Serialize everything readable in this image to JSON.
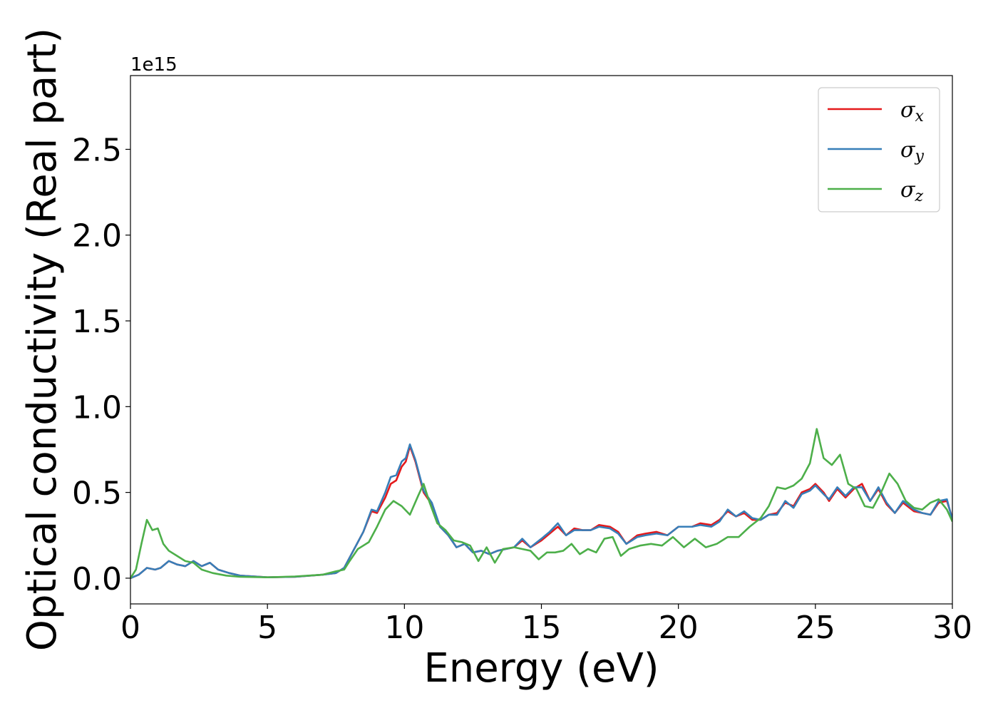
{
  "chart_data": {
    "type": "line",
    "title": "",
    "xlabel": "Energy (eV)",
    "ylabel": "Optical conductivity (Real part)",
    "y_offset_text": "1e15",
    "xlim": [
      0,
      30
    ],
    "ylim": [
      -0.15,
      2.93
    ],
    "xticks": [
      0,
      5,
      10,
      15,
      20,
      25,
      30
    ],
    "yticks": [
      0.0,
      0.5,
      1.0,
      1.5,
      2.0,
      2.5
    ],
    "xtick_labels": [
      "0",
      "5",
      "10",
      "15",
      "20",
      "25",
      "30"
    ],
    "ytick_labels": [
      "0.0",
      "0.5",
      "1.0",
      "1.5",
      "2.0",
      "2.5"
    ],
    "grid": false,
    "legend_position": "top-right",
    "series": [
      {
        "name": "σx",
        "legend_base": "σ",
        "legend_sub": "x",
        "color": "#e41a1c",
        "points": [
          [
            0,
            0
          ],
          [
            0.3,
            0.02
          ],
          [
            0.6,
            0.06
          ],
          [
            0.9,
            0.05
          ],
          [
            1.1,
            0.06
          ],
          [
            1.4,
            0.1
          ],
          [
            1.7,
            0.08
          ],
          [
            2.0,
            0.07
          ],
          [
            2.3,
            0.1
          ],
          [
            2.6,
            0.07
          ],
          [
            2.9,
            0.09
          ],
          [
            3.2,
            0.05
          ],
          [
            3.6,
            0.03
          ],
          [
            4.0,
            0.015
          ],
          [
            5.0,
            0.005
          ],
          [
            6.0,
            0.008
          ],
          [
            7.0,
            0.02
          ],
          [
            7.5,
            0.03
          ],
          [
            7.8,
            0.06
          ],
          [
            8.1,
            0.15
          ],
          [
            8.5,
            0.27
          ],
          [
            8.8,
            0.39
          ],
          [
            9.0,
            0.38
          ],
          [
            9.3,
            0.47
          ],
          [
            9.5,
            0.55
          ],
          [
            9.7,
            0.57
          ],
          [
            9.9,
            0.65
          ],
          [
            10.05,
            0.68
          ],
          [
            10.2,
            0.77
          ],
          [
            10.4,
            0.68
          ],
          [
            10.7,
            0.5
          ],
          [
            11.0,
            0.43
          ],
          [
            11.3,
            0.3
          ],
          [
            11.6,
            0.25
          ],
          [
            11.9,
            0.18
          ],
          [
            12.2,
            0.2
          ],
          [
            12.5,
            0.15
          ],
          [
            12.8,
            0.16
          ],
          [
            13.1,
            0.14
          ],
          [
            13.4,
            0.16
          ],
          [
            13.7,
            0.17
          ],
          [
            14.0,
            0.18
          ],
          [
            14.3,
            0.22
          ],
          [
            14.6,
            0.18
          ],
          [
            15.0,
            0.22
          ],
          [
            15.3,
            0.26
          ],
          [
            15.6,
            0.3
          ],
          [
            15.9,
            0.25
          ],
          [
            16.2,
            0.29
          ],
          [
            16.5,
            0.28
          ],
          [
            16.8,
            0.28
          ],
          [
            17.1,
            0.31
          ],
          [
            17.5,
            0.3
          ],
          [
            17.8,
            0.27
          ],
          [
            18.1,
            0.2
          ],
          [
            18.5,
            0.25
          ],
          [
            18.8,
            0.26
          ],
          [
            19.2,
            0.27
          ],
          [
            19.6,
            0.25
          ],
          [
            20.0,
            0.3
          ],
          [
            20.5,
            0.3
          ],
          [
            20.8,
            0.32
          ],
          [
            21.2,
            0.31
          ],
          [
            21.5,
            0.34
          ],
          [
            21.8,
            0.39
          ],
          [
            22.1,
            0.36
          ],
          [
            22.4,
            0.38
          ],
          [
            22.7,
            0.34
          ],
          [
            23.0,
            0.34
          ],
          [
            23.3,
            0.37
          ],
          [
            23.6,
            0.38
          ],
          [
            23.9,
            0.44
          ],
          [
            24.2,
            0.42
          ],
          [
            24.5,
            0.5
          ],
          [
            24.8,
            0.52
          ],
          [
            25.0,
            0.55
          ],
          [
            25.3,
            0.5
          ],
          [
            25.5,
            0.45
          ],
          [
            25.8,
            0.52
          ],
          [
            26.1,
            0.47
          ],
          [
            26.4,
            0.52
          ],
          [
            26.7,
            0.55
          ],
          [
            27.0,
            0.45
          ],
          [
            27.3,
            0.52
          ],
          [
            27.6,
            0.43
          ],
          [
            27.9,
            0.38
          ],
          [
            28.2,
            0.44
          ],
          [
            28.6,
            0.39
          ],
          [
            28.9,
            0.38
          ],
          [
            29.2,
            0.37
          ],
          [
            29.5,
            0.44
          ],
          [
            29.8,
            0.45
          ],
          [
            30.0,
            0.35
          ]
        ]
      },
      {
        "name": "σy",
        "legend_base": "σ",
        "legend_sub": "y",
        "color": "#377eb8",
        "points": [
          [
            0,
            0
          ],
          [
            0.3,
            0.02
          ],
          [
            0.6,
            0.06
          ],
          [
            0.9,
            0.05
          ],
          [
            1.1,
            0.06
          ],
          [
            1.4,
            0.1
          ],
          [
            1.7,
            0.08
          ],
          [
            2.0,
            0.07
          ],
          [
            2.3,
            0.1
          ],
          [
            2.6,
            0.07
          ],
          [
            2.9,
            0.09
          ],
          [
            3.2,
            0.05
          ],
          [
            3.6,
            0.03
          ],
          [
            4.0,
            0.015
          ],
          [
            5.0,
            0.005
          ],
          [
            6.0,
            0.008
          ],
          [
            7.0,
            0.02
          ],
          [
            7.5,
            0.03
          ],
          [
            7.8,
            0.06
          ],
          [
            8.1,
            0.15
          ],
          [
            8.5,
            0.27
          ],
          [
            8.8,
            0.4
          ],
          [
            9.0,
            0.39
          ],
          [
            9.3,
            0.5
          ],
          [
            9.5,
            0.59
          ],
          [
            9.7,
            0.6
          ],
          [
            9.9,
            0.68
          ],
          [
            10.05,
            0.7
          ],
          [
            10.2,
            0.78
          ],
          [
            10.4,
            0.69
          ],
          [
            10.7,
            0.51
          ],
          [
            11.0,
            0.44
          ],
          [
            11.3,
            0.3
          ],
          [
            11.6,
            0.25
          ],
          [
            11.9,
            0.18
          ],
          [
            12.2,
            0.2
          ],
          [
            12.5,
            0.15
          ],
          [
            12.8,
            0.16
          ],
          [
            13.1,
            0.14
          ],
          [
            13.4,
            0.16
          ],
          [
            13.7,
            0.17
          ],
          [
            14.0,
            0.18
          ],
          [
            14.3,
            0.23
          ],
          [
            14.6,
            0.18
          ],
          [
            15.0,
            0.23
          ],
          [
            15.3,
            0.27
          ],
          [
            15.6,
            0.32
          ],
          [
            15.9,
            0.25
          ],
          [
            16.2,
            0.28
          ],
          [
            16.5,
            0.28
          ],
          [
            16.8,
            0.28
          ],
          [
            17.1,
            0.3
          ],
          [
            17.5,
            0.29
          ],
          [
            17.8,
            0.26
          ],
          [
            18.1,
            0.2
          ],
          [
            18.5,
            0.24
          ],
          [
            18.8,
            0.25
          ],
          [
            19.2,
            0.26
          ],
          [
            19.6,
            0.25
          ],
          [
            20.0,
            0.3
          ],
          [
            20.5,
            0.3
          ],
          [
            20.8,
            0.31
          ],
          [
            21.2,
            0.3
          ],
          [
            21.5,
            0.33
          ],
          [
            21.8,
            0.4
          ],
          [
            22.1,
            0.36
          ],
          [
            22.4,
            0.39
          ],
          [
            22.7,
            0.35
          ],
          [
            23.0,
            0.34
          ],
          [
            23.3,
            0.37
          ],
          [
            23.6,
            0.37
          ],
          [
            23.9,
            0.45
          ],
          [
            24.2,
            0.41
          ],
          [
            24.5,
            0.49
          ],
          [
            24.8,
            0.51
          ],
          [
            25.0,
            0.54
          ],
          [
            25.3,
            0.49
          ],
          [
            25.5,
            0.46
          ],
          [
            25.8,
            0.53
          ],
          [
            26.1,
            0.48
          ],
          [
            26.4,
            0.53
          ],
          [
            26.7,
            0.53
          ],
          [
            27.0,
            0.45
          ],
          [
            27.3,
            0.53
          ],
          [
            27.6,
            0.44
          ],
          [
            27.9,
            0.38
          ],
          [
            28.2,
            0.45
          ],
          [
            28.6,
            0.4
          ],
          [
            28.9,
            0.38
          ],
          [
            29.2,
            0.37
          ],
          [
            29.5,
            0.45
          ],
          [
            29.8,
            0.46
          ],
          [
            30.0,
            0.34
          ]
        ]
      },
      {
        "name": "σz",
        "legend_base": "σ",
        "legend_sub": "z",
        "color": "#4daf4a",
        "points": [
          [
            0,
            0
          ],
          [
            0.2,
            0.05
          ],
          [
            0.4,
            0.2
          ],
          [
            0.6,
            0.34
          ],
          [
            0.8,
            0.28
          ],
          [
            1.0,
            0.29
          ],
          [
            1.2,
            0.2
          ],
          [
            1.4,
            0.16
          ],
          [
            1.7,
            0.13
          ],
          [
            2.0,
            0.1
          ],
          [
            2.3,
            0.09
          ],
          [
            2.6,
            0.05
          ],
          [
            3.0,
            0.03
          ],
          [
            3.5,
            0.015
          ],
          [
            4.0,
            0.008
          ],
          [
            5.0,
            0.005
          ],
          [
            6.0,
            0.01
          ],
          [
            7.0,
            0.02
          ],
          [
            7.5,
            0.04
          ],
          [
            7.8,
            0.05
          ],
          [
            8.0,
            0.1
          ],
          [
            8.3,
            0.17
          ],
          [
            8.7,
            0.21
          ],
          [
            9.0,
            0.3
          ],
          [
            9.3,
            0.4
          ],
          [
            9.6,
            0.45
          ],
          [
            9.9,
            0.42
          ],
          [
            10.2,
            0.37
          ],
          [
            10.5,
            0.48
          ],
          [
            10.7,
            0.55
          ],
          [
            10.9,
            0.45
          ],
          [
            11.2,
            0.32
          ],
          [
            11.5,
            0.28
          ],
          [
            11.8,
            0.22
          ],
          [
            12.1,
            0.21
          ],
          [
            12.4,
            0.19
          ],
          [
            12.7,
            0.1
          ],
          [
            13.0,
            0.18
          ],
          [
            13.3,
            0.09
          ],
          [
            13.6,
            0.17
          ],
          [
            14.0,
            0.18
          ],
          [
            14.3,
            0.17
          ],
          [
            14.6,
            0.16
          ],
          [
            14.9,
            0.11
          ],
          [
            15.2,
            0.15
          ],
          [
            15.5,
            0.15
          ],
          [
            15.8,
            0.16
          ],
          [
            16.1,
            0.2
          ],
          [
            16.4,
            0.14
          ],
          [
            16.7,
            0.17
          ],
          [
            17.0,
            0.15
          ],
          [
            17.3,
            0.23
          ],
          [
            17.6,
            0.24
          ],
          [
            17.9,
            0.13
          ],
          [
            18.2,
            0.17
          ],
          [
            18.6,
            0.19
          ],
          [
            19.0,
            0.2
          ],
          [
            19.4,
            0.19
          ],
          [
            19.8,
            0.24
          ],
          [
            20.2,
            0.18
          ],
          [
            20.6,
            0.23
          ],
          [
            21.0,
            0.18
          ],
          [
            21.4,
            0.2
          ],
          [
            21.8,
            0.24
          ],
          [
            22.2,
            0.24
          ],
          [
            22.6,
            0.3
          ],
          [
            23.0,
            0.35
          ],
          [
            23.3,
            0.42
          ],
          [
            23.6,
            0.53
          ],
          [
            23.9,
            0.52
          ],
          [
            24.2,
            0.54
          ],
          [
            24.5,
            0.58
          ],
          [
            24.8,
            0.67
          ],
          [
            25.05,
            0.87
          ],
          [
            25.3,
            0.7
          ],
          [
            25.6,
            0.66
          ],
          [
            25.9,
            0.72
          ],
          [
            26.2,
            0.55
          ],
          [
            26.5,
            0.52
          ],
          [
            26.8,
            0.42
          ],
          [
            27.1,
            0.41
          ],
          [
            27.4,
            0.5
          ],
          [
            27.7,
            0.61
          ],
          [
            28.0,
            0.55
          ],
          [
            28.3,
            0.45
          ],
          [
            28.6,
            0.41
          ],
          [
            28.9,
            0.4
          ],
          [
            29.2,
            0.44
          ],
          [
            29.5,
            0.46
          ],
          [
            29.8,
            0.4
          ],
          [
            30.0,
            0.33
          ]
        ]
      }
    ]
  }
}
